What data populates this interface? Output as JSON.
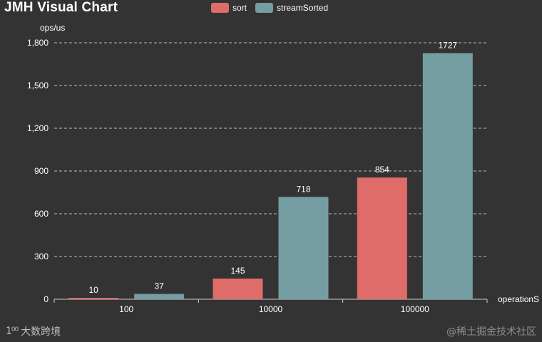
{
  "title": "JMH Visual Chart",
  "legend": [
    {
      "name": "sort",
      "color": "#e06c69"
    },
    {
      "name": "streamSorted",
      "color": "#759ea3"
    }
  ],
  "chart_data": {
    "type": "bar",
    "title": "JMH Visual Chart",
    "xlabel": "operationS",
    "ylabel": "ops/us",
    "categories": [
      "100",
      "10000",
      "100000"
    ],
    "series": [
      {
        "name": "sort",
        "values": [
          10,
          145,
          854
        ],
        "color": "#e06c69"
      },
      {
        "name": "streamSorted",
        "values": [
          37,
          718,
          1727
        ],
        "color": "#759ea3"
      }
    ],
    "ylim": [
      0,
      1800
    ],
    "yticks": [
      0,
      300,
      600,
      900,
      1200,
      1500,
      1800
    ],
    "ytick_labels": [
      "0",
      "300",
      "600",
      "900",
      "1,200",
      "1,500",
      "1,800"
    ],
    "grid": "horizontal dashed",
    "legend_position": "top-center"
  },
  "watermark": {
    "logo": "1⁰⁰",
    "left_text": "大数跨境",
    "right_text": "@稀土掘金技术社区"
  }
}
